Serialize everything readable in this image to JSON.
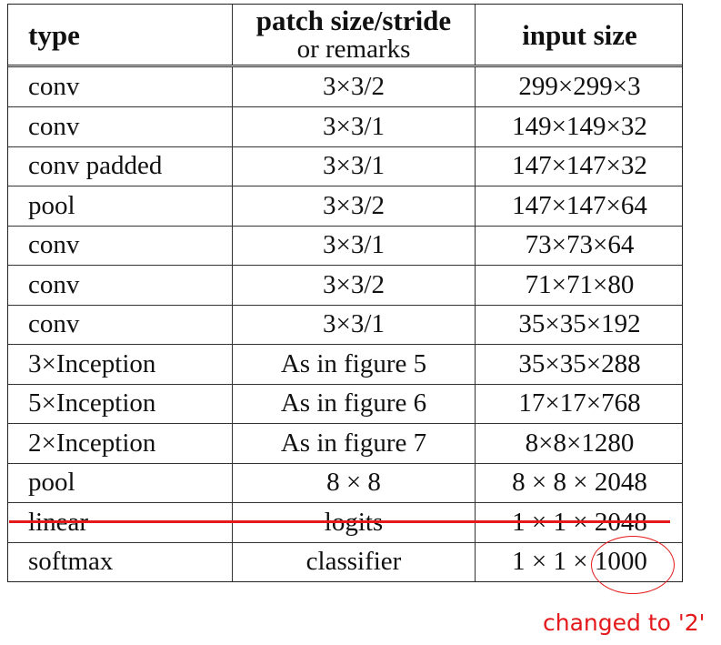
{
  "table": {
    "header": {
      "type": "type",
      "patch_line1": "patch size/stride",
      "patch_line2": "or remarks",
      "input": "input size"
    },
    "rows": [
      {
        "type": "conv",
        "patch": "3×3/2",
        "input": "299×299×3"
      },
      {
        "type": "conv",
        "patch": "3×3/1",
        "input": "149×149×32"
      },
      {
        "type": "conv padded",
        "patch": "3×3/1",
        "input": "147×147×32"
      },
      {
        "type": "pool",
        "patch": "3×3/2",
        "input": "147×147×64"
      },
      {
        "type": "conv",
        "patch": "3×3/1",
        "input": "73×73×64"
      },
      {
        "type": "conv",
        "patch": "3×3/2",
        "input": "71×71×80"
      },
      {
        "type": "conv",
        "patch": "3×3/1",
        "input": "35×35×192"
      },
      {
        "type": "3×Inception",
        "patch": "As in figure 5",
        "input": "35×35×288"
      },
      {
        "type": "5×Inception",
        "patch": "As in figure 6",
        "input": "17×17×768"
      },
      {
        "type": "2×Inception",
        "patch": "As in figure 7",
        "input": "8×8×1280"
      },
      {
        "type": "pool",
        "patch": "8 × 8",
        "input": "8 × 8 × 2048"
      },
      {
        "type": "linear",
        "patch": "logits",
        "input": "1 × 1 × 2048"
      },
      {
        "type": "softmax",
        "patch": "classifier",
        "input": "1 × 1 × 1000"
      }
    ]
  },
  "annotation": {
    "text": "changed  to '2'",
    "color": "#e3191b"
  }
}
